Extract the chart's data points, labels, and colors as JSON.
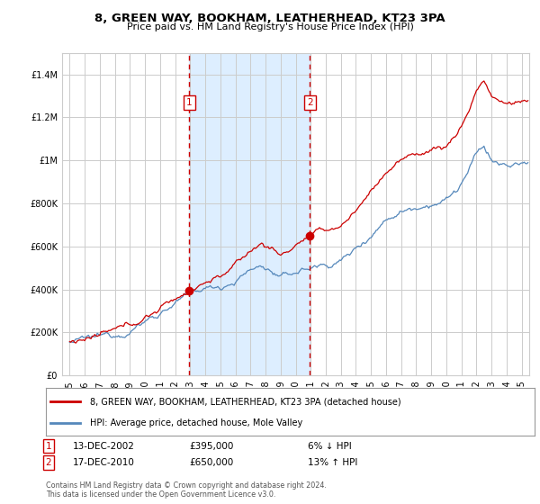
{
  "title": "8, GREEN WAY, BOOKHAM, LEATHERHEAD, KT23 3PA",
  "subtitle": "Price paid vs. HM Land Registry's House Price Index (HPI)",
  "legend_line1": "8, GREEN WAY, BOOKHAM, LEATHERHEAD, KT23 3PA (detached house)",
  "legend_line2": "HPI: Average price, detached house, Mole Valley",
  "transaction1_label": "1",
  "transaction1_date": "13-DEC-2002",
  "transaction1_price": "£395,000",
  "transaction1_hpi": "6% ↓ HPI",
  "transaction1_year": 2002.95,
  "transaction1_value": 395000,
  "transaction2_label": "2",
  "transaction2_date": "17-DEC-2010",
  "transaction2_price": "£650,000",
  "transaction2_hpi": "13% ↑ HPI",
  "transaction2_year": 2010.95,
  "transaction2_value": 650000,
  "copyright": "Contains HM Land Registry data © Crown copyright and database right 2024.\nThis data is licensed under the Open Government Licence v3.0.",
  "red_color": "#cc0000",
  "blue_color": "#5588bb",
  "shaded_color": "#ddeeff",
  "background_color": "#ffffff",
  "grid_color": "#cccccc",
  "ylim": [
    0,
    1500000
  ],
  "xlim_start": 1994.5,
  "xlim_end": 2025.5
}
